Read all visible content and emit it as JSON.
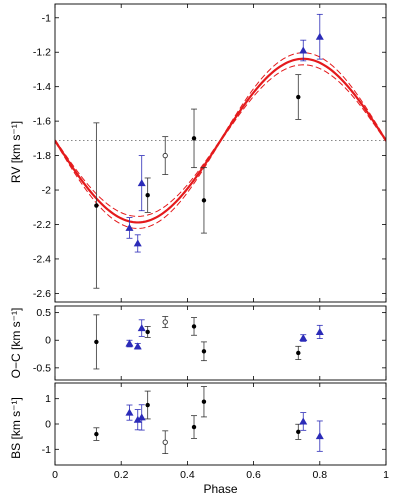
{
  "chart_data": [
    {
      "type": "scatter",
      "panel": "rv",
      "title": "",
      "xlabel": "Phase",
      "ylabel": "RV [km s⁻¹]",
      "xlim": [
        0,
        1
      ],
      "ylim": [
        -2.65,
        -0.92
      ],
      "yticks": [
        -2.6,
        -2.4,
        -2.2,
        -2.0,
        -1.8,
        -1.6,
        -1.4,
        -1.2,
        -1.0
      ],
      "ytick_labels": [
        "-2.6",
        "-2.4",
        "-2.2",
        "-2",
        "-1.8",
        "-1.6",
        "-1.4",
        "-1.2",
        "-1"
      ],
      "grid": false,
      "model": {
        "type": "line",
        "function": "sine",
        "systemic_velocity": -1.713,
        "semi_amplitude": 0.475,
        "phase_of_maximum": 0.75,
        "band_halfwidth_at_extrema": 0.035,
        "band_halfwidth_at_systemic": 0.005,
        "color": "#e41a1c"
      },
      "reference_line": {
        "y": -1.713,
        "style": "dotted"
      },
      "series": [
        {
          "marker": "circle",
          "color": "#000000",
          "x": [
            0.125,
            0.28,
            0.42,
            0.45,
            0.735
          ],
          "y": [
            -2.09,
            -2.03,
            -1.7,
            -2.06,
            -1.46
          ],
          "yerr": [
            0.48,
            0.1,
            0.17,
            0.19,
            0.13
          ]
        },
        {
          "marker": "triangle",
          "color": "#2b2bb8",
          "x": [
            0.225,
            0.25,
            0.262,
            0.75,
            0.8
          ],
          "y": [
            -2.22,
            -2.31,
            -1.96,
            -1.19,
            -1.11
          ],
          "yerr": [
            0.06,
            0.05,
            0.16,
            0.06,
            0.13
          ]
        },
        {
          "marker": "open-circle",
          "color": "#333333",
          "x": [
            0.333
          ],
          "y": [
            -1.8
          ],
          "yerr": [
            0.11
          ]
        }
      ]
    },
    {
      "type": "scatter",
      "panel": "oc",
      "xlabel": "",
      "ylabel": "O−C [km s⁻¹]",
      "xlim": [
        0,
        1
      ],
      "ylim": [
        -0.72,
        0.62
      ],
      "yticks": [
        -0.5,
        0,
        0.5
      ],
      "ytick_labels": [
        "-0.5",
        "0",
        "0.5"
      ],
      "series": [
        {
          "marker": "circle",
          "color": "#000000",
          "x": [
            0.125,
            0.28,
            0.42,
            0.45,
            0.735
          ],
          "y": [
            -0.03,
            0.15,
            0.25,
            -0.2,
            -0.23
          ],
          "yerr": [
            0.49,
            0.1,
            0.16,
            0.17,
            0.12
          ]
        },
        {
          "marker": "triangle",
          "color": "#2b2bb8",
          "x": [
            0.225,
            0.25,
            0.262,
            0.75,
            0.8
          ],
          "y": [
            -0.06,
            -0.11,
            0.22,
            0.04,
            0.15
          ],
          "yerr": [
            0.06,
            0.05,
            0.15,
            0.06,
            0.12
          ]
        },
        {
          "marker": "open-circle",
          "color": "#333333",
          "x": [
            0.333
          ],
          "y": [
            0.33
          ],
          "yerr": [
            0.1
          ]
        }
      ]
    },
    {
      "type": "scatter",
      "panel": "bs",
      "xlabel": "Phase",
      "ylabel": "BS [km s⁻¹]",
      "xlim": [
        0,
        1
      ],
      "ylim": [
        -1.62,
        1.62
      ],
      "yticks": [
        -1,
        0,
        1
      ],
      "ytick_labels": [
        "-1",
        "0",
        "1"
      ],
      "xticks": [
        0,
        0.2,
        0.4,
        0.6,
        0.8,
        1
      ],
      "xtick_labels": [
        "0",
        "0.2",
        "0.4",
        "0.6",
        "0.8",
        "1"
      ],
      "series": [
        {
          "marker": "circle",
          "color": "#000000",
          "x": [
            0.125,
            0.28,
            0.42,
            0.45,
            0.735
          ],
          "y": [
            -0.4,
            0.75,
            -0.12,
            0.88,
            -0.31
          ],
          "yerr": [
            0.25,
            0.55,
            0.45,
            0.6,
            0.3
          ]
        },
        {
          "marker": "triangle",
          "color": "#2b2bb8",
          "x": [
            0.225,
            0.25,
            0.262,
            0.75,
            0.8
          ],
          "y": [
            0.45,
            0.17,
            0.26,
            0.1,
            -0.48
          ],
          "yerr": [
            0.3,
            0.4,
            0.5,
            0.35,
            0.6
          ]
        },
        {
          "marker": "open-circle",
          "color": "#333333",
          "x": [
            0.333
          ],
          "y": [
            -0.72
          ],
          "yerr": [
            0.45
          ]
        }
      ]
    }
  ]
}
